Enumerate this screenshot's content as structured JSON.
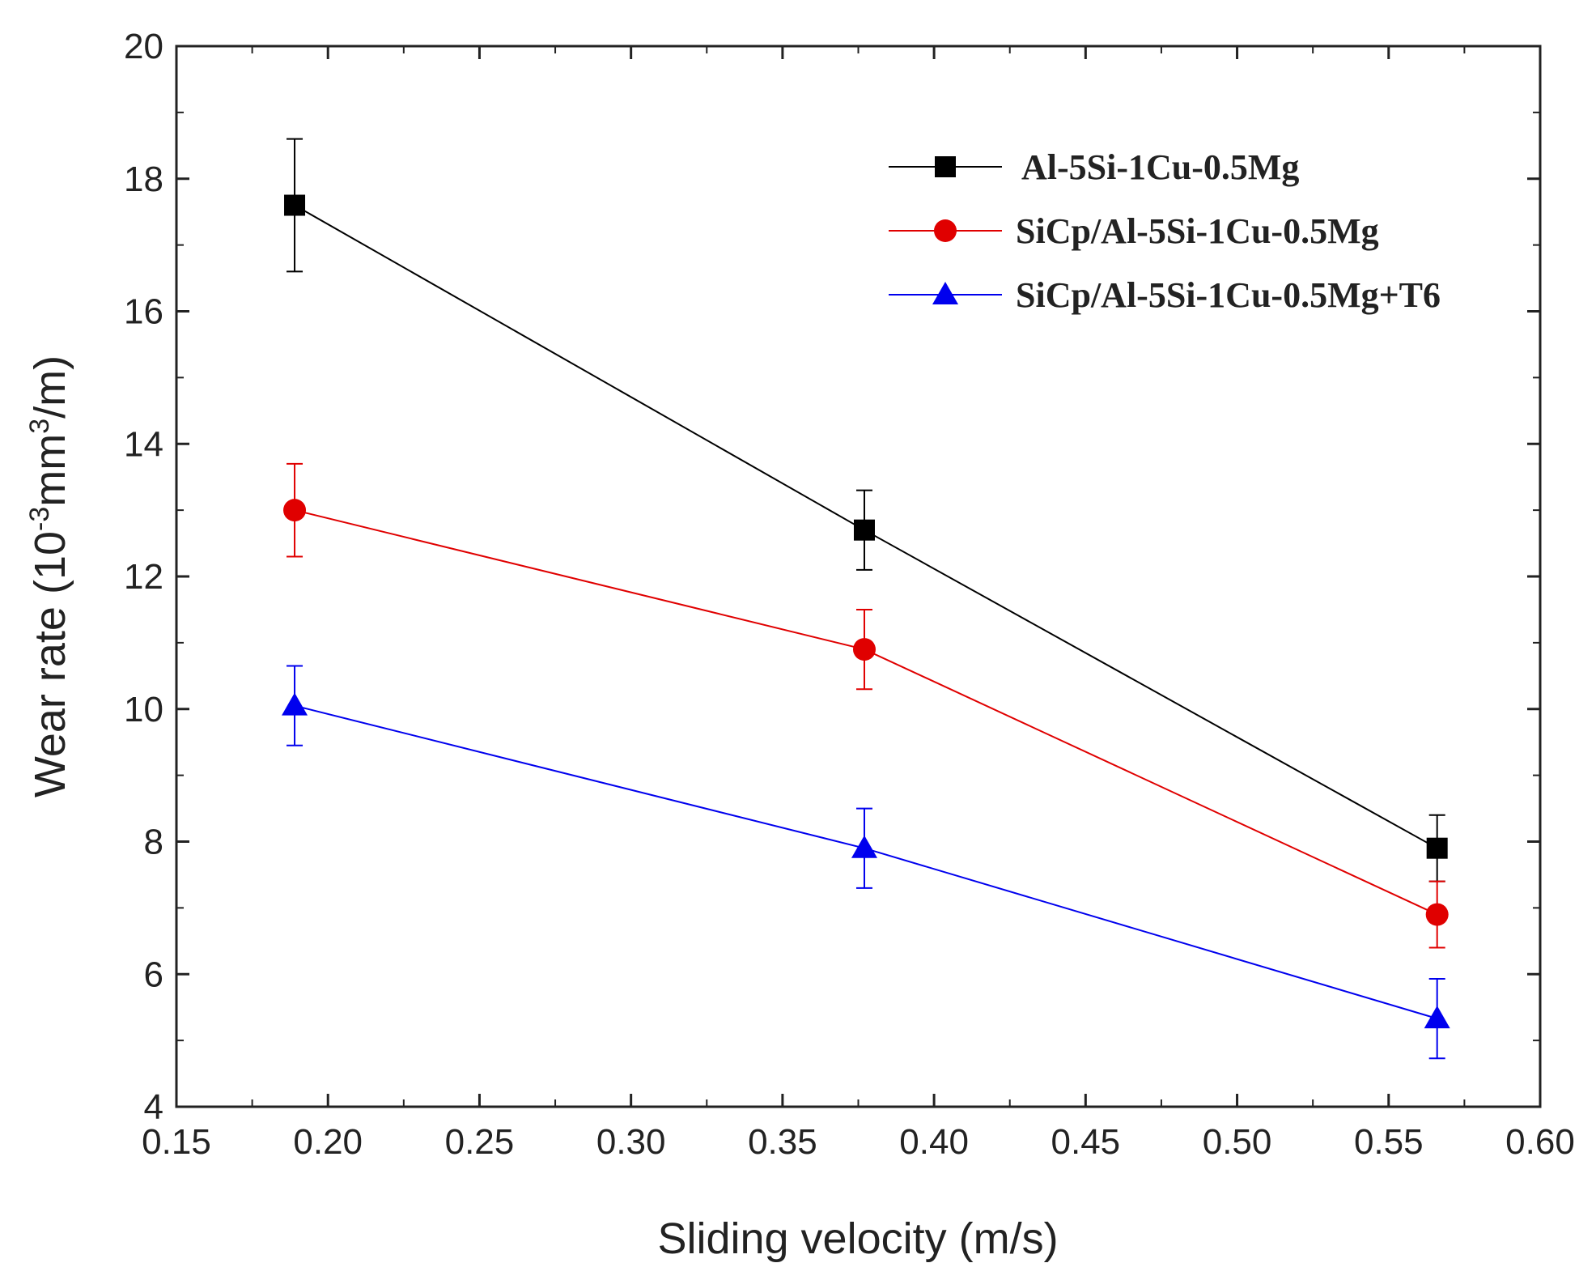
{
  "chart_data": {
    "type": "line",
    "title": "",
    "xlabel": "Sliding velocity (m/s)",
    "ylabel": {
      "prefix": "Wear rate (10",
      "exp1": "-3",
      "mid": "mm",
      "exp2": "3",
      "suffix": "/m)"
    },
    "xlim": [
      0.15,
      0.6
    ],
    "ylim": [
      4,
      20
    ],
    "x_ticks": [
      "0.15",
      "0.20",
      "0.25",
      "0.30",
      "0.35",
      "0.40",
      "0.45",
      "0.50",
      "0.55",
      "0.60"
    ],
    "y_ticks": [
      "4",
      "6",
      "8",
      "10",
      "12",
      "14",
      "16",
      "18",
      "20"
    ],
    "grid": false,
    "legend_position": "top-right",
    "x": [
      0.189,
      0.377,
      0.566
    ],
    "series": [
      {
        "name": "Al-5Si-1Cu-0.5Mg",
        "color": "#000000",
        "marker": "square",
        "values": [
          17.6,
          12.7,
          7.9
        ],
        "errors": [
          1.0,
          0.6,
          0.5
        ]
      },
      {
        "name": "SiCp/Al-5Si-1Cu-0.5Mg",
        "color": "#e00000",
        "marker": "circle",
        "values": [
          13.0,
          10.9,
          6.9
        ],
        "errors": [
          0.7,
          0.6,
          0.5
        ]
      },
      {
        "name": "SiCp/Al-5Si-1Cu-0.5Mg+T6",
        "color": "#0000ee",
        "marker": "triangle",
        "values": [
          10.05,
          7.9,
          5.33
        ],
        "errors": [
          0.6,
          0.6,
          0.6
        ]
      }
    ]
  }
}
